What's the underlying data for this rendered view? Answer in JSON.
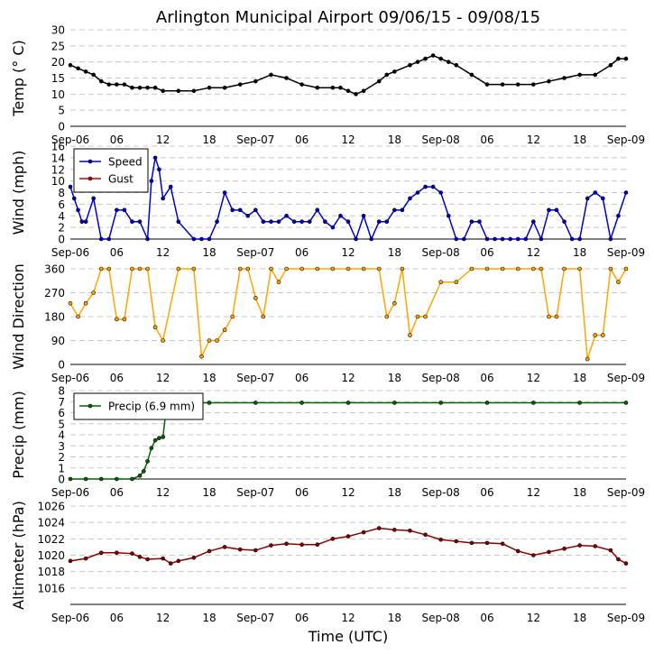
{
  "title": "Arlington Municipal Airport 09/06/15 - 09/08/15",
  "x_axis_label": "Time (UTC)",
  "x_tick_labels": [
    "Sep-06",
    "06",
    "12",
    "18",
    "Sep-07",
    "06",
    "12",
    "18",
    "Sep-08",
    "06",
    "12",
    "18",
    "Sep-09"
  ],
  "chart_data": [
    {
      "type": "line",
      "ylabel": "Temp ($^\\circ$C)",
      "ylabel_display": "Temp (° C)",
      "ylim": [
        0,
        30
      ],
      "yticks": [
        0,
        5,
        10,
        15,
        20,
        25,
        30
      ],
      "x_unit": "hours since Sep-06 00:00 UTC",
      "series": [
        {
          "color": "#000000",
          "x": [
            0,
            1,
            2,
            3,
            4,
            5,
            6,
            7,
            8,
            9,
            10,
            11,
            12,
            14,
            16,
            18,
            20,
            22,
            24,
            26,
            28,
            30,
            32,
            34,
            35,
            36,
            37,
            38,
            40,
            41,
            42,
            44,
            45,
            46,
            47,
            48,
            49,
            50,
            52,
            54,
            56,
            58,
            60,
            62,
            64,
            66,
            68,
            70,
            71,
            72
          ],
          "values": [
            19,
            18,
            17,
            16,
            14,
            13,
            13,
            13,
            12,
            12,
            12,
            12,
            11,
            11,
            11,
            12,
            12,
            13,
            14,
            16,
            15,
            13,
            12,
            12,
            12,
            11,
            10,
            11,
            14,
            16,
            17,
            19,
            20,
            21,
            22,
            21,
            20,
            19,
            16,
            13,
            13,
            13,
            13,
            14,
            15,
            16,
            16,
            19,
            21,
            21
          ]
        }
      ]
    },
    {
      "type": "line",
      "ylabel": "Wind (mph)",
      "ylim": [
        0,
        16
      ],
      "yticks": [
        0,
        2,
        4,
        6,
        8,
        10,
        12,
        14,
        16
      ],
      "legend": {
        "position": "upper left",
        "entries": [
          "Speed",
          "Gust"
        ]
      },
      "series": [
        {
          "name": "Speed",
          "color": "#0000cc",
          "x": [
            0,
            0.5,
            1,
            1.5,
            2,
            3,
            4,
            5,
            6,
            7,
            8,
            9,
            10,
            10.5,
            11,
            11.5,
            12,
            13,
            14,
            16,
            17,
            18,
            19,
            20,
            21,
            22,
            23,
            24,
            25,
            26,
            27,
            28,
            29,
            30,
            31,
            32,
            33,
            34,
            35,
            36,
            37,
            38,
            39,
            40,
            41,
            42,
            43,
            44,
            45,
            46,
            47,
            48,
            49,
            50,
            51,
            52,
            53,
            54,
            55,
            56,
            57,
            58,
            59,
            60,
            61,
            62,
            63,
            64,
            65,
            66,
            67,
            68,
            69,
            70,
            71,
            72
          ],
          "values": [
            9,
            7,
            5,
            3,
            3,
            7,
            0,
            0,
            5,
            5,
            3,
            3,
            0,
            10,
            14,
            12,
            7,
            9,
            3,
            0,
            0,
            0,
            3,
            8,
            5,
            5,
            4,
            5,
            3,
            3,
            3,
            4,
            3,
            3,
            3,
            5,
            3,
            2,
            4,
            3,
            0,
            4,
            0,
            3,
            3,
            5,
            5,
            7,
            8,
            9,
            9,
            8,
            4,
            0,
            0,
            3,
            3,
            0,
            0,
            0,
            0,
            0,
            0,
            3,
            0,
            5,
            5,
            3,
            0,
            0,
            7,
            8,
            7,
            0,
            4,
            8
          ]
        },
        {
          "name": "Gust",
          "color": "#cc0000",
          "x": [],
          "values": []
        }
      ]
    },
    {
      "type": "scatter",
      "ylabel": "Wind Direction",
      "ylim": [
        0,
        360
      ],
      "yticks": [
        0,
        90,
        180,
        270,
        360
      ],
      "series": [
        {
          "color": "#ffa500",
          "x": [
            0,
            1,
            2,
            3,
            4,
            5,
            6,
            7,
            8,
            9,
            10,
            11,
            12,
            14,
            16,
            17,
            18,
            19,
            20,
            21,
            22,
            23,
            24,
            25,
            26,
            27,
            28,
            30,
            32,
            34,
            36,
            38,
            40,
            41,
            42,
            43,
            44,
            45,
            46,
            48,
            50,
            52,
            54,
            56,
            58,
            60,
            61,
            62,
            63,
            64,
            66,
            67,
            68,
            69,
            70,
            71,
            72
          ],
          "values": [
            230,
            180,
            230,
            270,
            360,
            360,
            170,
            170,
            360,
            360,
            360,
            140,
            90,
            360,
            360,
            30,
            90,
            90,
            130,
            180,
            360,
            360,
            250,
            180,
            360,
            310,
            360,
            360,
            360,
            360,
            360,
            360,
            360,
            180,
            230,
            360,
            110,
            180,
            180,
            310,
            310,
            360,
            360,
            360,
            360,
            360,
            360,
            180,
            180,
            360,
            360,
            20,
            110,
            110,
            360,
            310,
            360
          ]
        }
      ]
    },
    {
      "type": "line",
      "ylabel": "Precip (mm)",
      "ylim": [
        0,
        8
      ],
      "yticks": [
        0,
        1,
        2,
        3,
        4,
        5,
        6,
        7,
        8
      ],
      "legend": {
        "position": "upper left",
        "entries": [
          "Precip (6.9 mm)"
        ]
      },
      "series": [
        {
          "name": "Precip (6.9 mm)",
          "color": "#006400",
          "x": [
            0,
            2,
            4,
            6,
            8,
            9,
            9.5,
            10,
            10.5,
            11,
            11.5,
            12,
            12.5,
            13,
            18,
            24,
            30,
            36,
            42,
            48,
            54,
            60,
            66,
            72
          ],
          "values": [
            0,
            0,
            0,
            0,
            0,
            0.3,
            0.7,
            1.6,
            2.8,
            3.5,
            3.7,
            3.8,
            6.9,
            6.9,
            6.9,
            6.9,
            6.9,
            6.9,
            6.9,
            6.9,
            6.9,
            6.9,
            6.9,
            6.9
          ]
        }
      ]
    },
    {
      "type": "line",
      "ylabel": "Altimeter (hPa)",
      "ylim": [
        1014,
        1026
      ],
      "yticks": [
        1016,
        1018,
        1020,
        1022,
        1024,
        1026
      ],
      "series": [
        {
          "color": "#8b0000",
          "x": [
            0,
            2,
            4,
            6,
            8,
            9,
            10,
            12,
            13,
            14,
            16,
            18,
            20,
            22,
            24,
            26,
            28,
            30,
            32,
            34,
            36,
            38,
            40,
            42,
            44,
            46,
            48,
            50,
            52,
            54,
            56,
            58,
            60,
            62,
            64,
            66,
            68,
            70,
            71,
            72
          ],
          "values": [
            1019.3,
            1019.6,
            1020.3,
            1020.3,
            1020.2,
            1019.8,
            1019.5,
            1019.6,
            1019.0,
            1019.3,
            1019.7,
            1020.5,
            1021.0,
            1020.7,
            1020.6,
            1021.2,
            1021.4,
            1021.3,
            1021.3,
            1022.0,
            1022.3,
            1022.8,
            1023.3,
            1023.1,
            1023.0,
            1022.5,
            1021.9,
            1021.7,
            1021.5,
            1021.5,
            1021.4,
            1020.5,
            1020.0,
            1020.4,
            1020.8,
            1021.2,
            1021.1,
            1020.6,
            1019.5,
            1019.0
          ]
        }
      ]
    }
  ]
}
